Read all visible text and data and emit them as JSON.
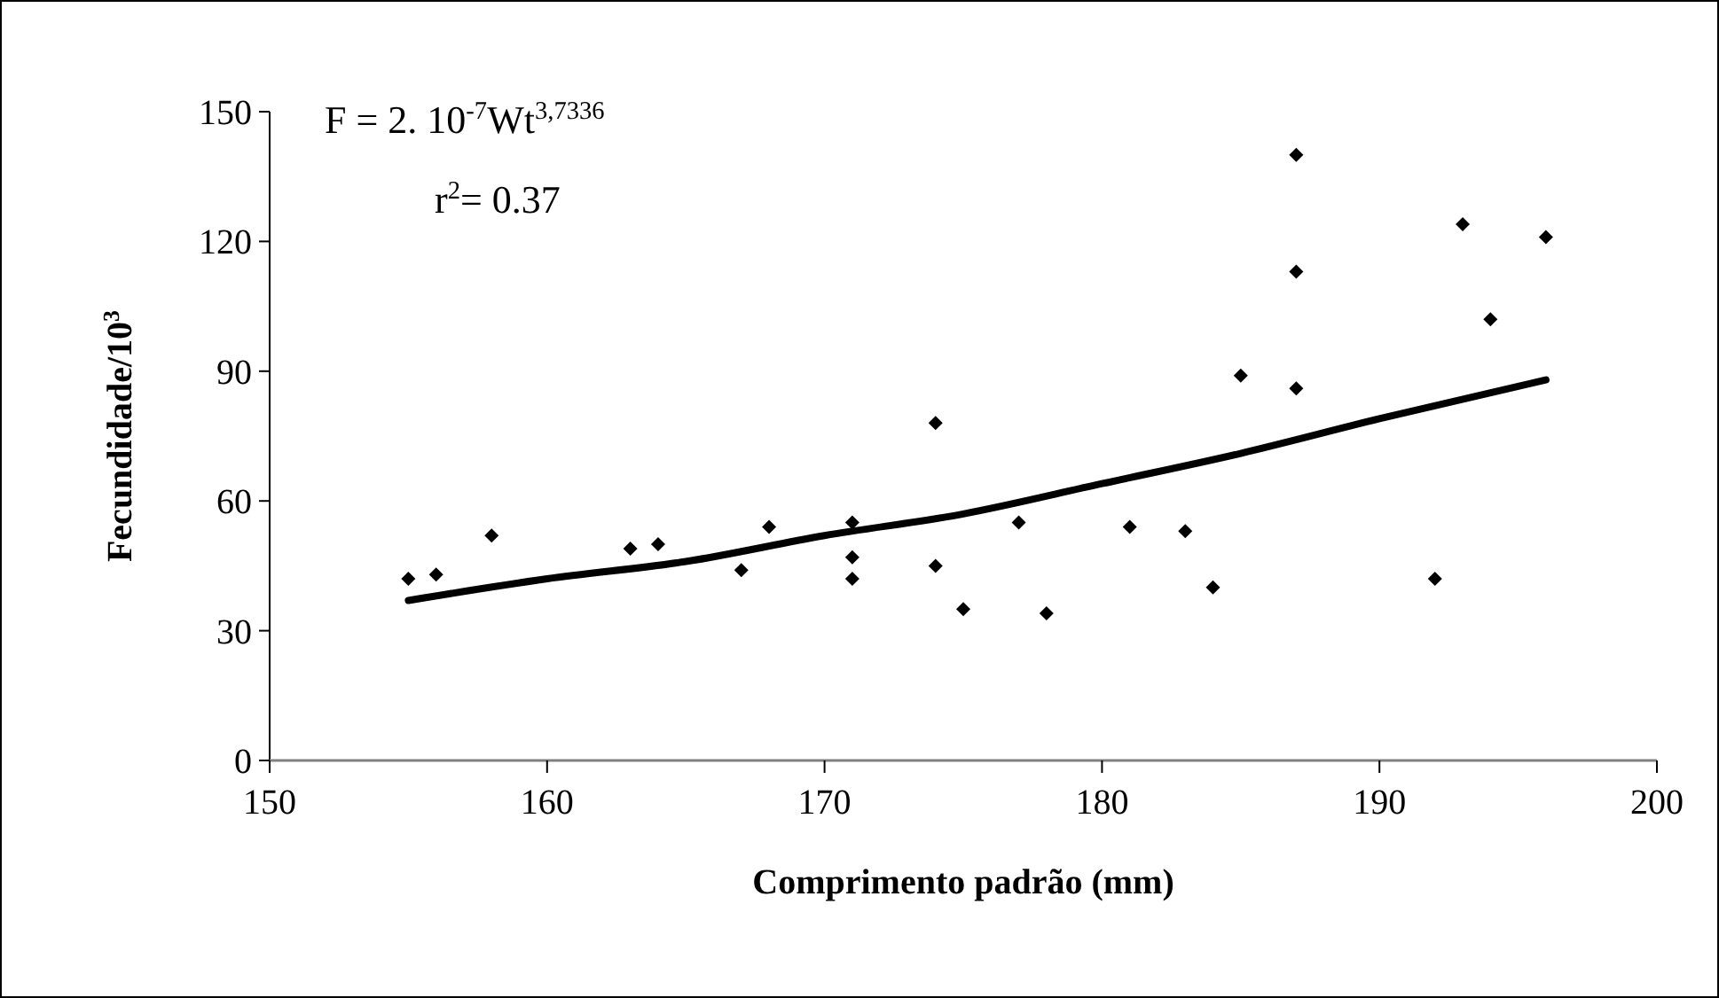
{
  "chart_data": {
    "type": "scatter",
    "xlabel": "Comprimento padrão (mm)",
    "ylabel": "Fecundidade/10$^{3}$",
    "annotations": [
      "F = 2. 10$^{-7}$Wt$^{3,7336}$",
      "r$^{2}$= 0.37"
    ],
    "xlim": [
      150,
      200
    ],
    "xticks": [
      150,
      160,
      170,
      180,
      190,
      200
    ],
    "ylim": [
      0,
      150
    ],
    "yticks": [
      0,
      30,
      60,
      90,
      120,
      150
    ],
    "grid": false,
    "marker": "diamond",
    "series": [
      {
        "color": "#000000",
        "x": [
          155,
          156,
          158,
          163,
          164,
          167,
          168,
          171,
          171,
          171,
          174,
          174,
          175,
          177,
          178,
          181,
          183,
          184,
          185,
          187,
          187,
          187,
          192,
          193,
          194,
          196
        ],
        "values": [
          42,
          43,
          52,
          49,
          50,
          44,
          54,
          55,
          47,
          42,
          78,
          45,
          35,
          55,
          34,
          54,
          53,
          40,
          89,
          140,
          113,
          86,
          42,
          124,
          102,
          121
        ]
      },
      {
        "type": "line",
        "color": "#000000",
        "line_style": "solid",
        "marker": "none",
        "x": [
          155,
          160,
          165,
          170,
          175,
          180,
          185,
          190,
          196
        ],
        "values": [
          37,
          42,
          46,
          52,
          57,
          64,
          71,
          79,
          88
        ]
      }
    ]
  }
}
